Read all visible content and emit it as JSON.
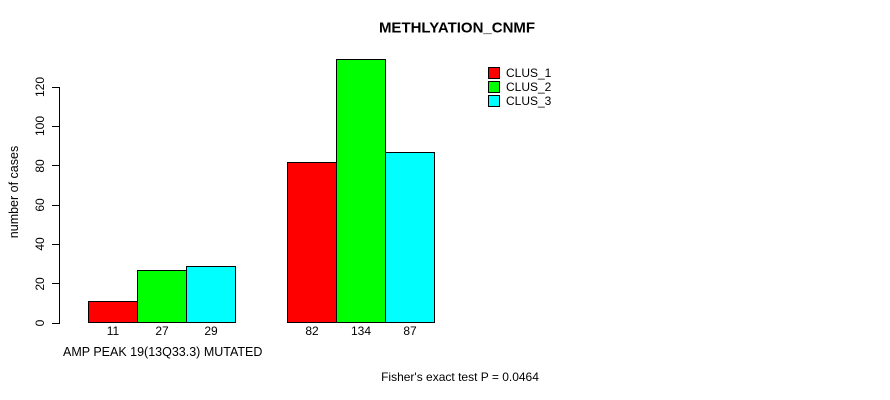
{
  "chart": {
    "title": "METHLYATION_CNMF",
    "ylabel": "number of cases",
    "xlabel": "AMP PEAK 19(13Q33.3) MUTATED",
    "footnote": "Fisher's exact test P = 0.0464"
  },
  "chart_data": {
    "type": "bar",
    "title": "METHLYATION_CNMF",
    "xlabel": "AMP PEAK 19(13Q33.3) MUTATED",
    "ylabel": "number of cases",
    "categories": [
      "",
      ""
    ],
    "series": [
      {
        "name": "CLUS_1",
        "color": "#FF0000",
        "values": [
          11,
          82
        ]
      },
      {
        "name": "CLUS_2",
        "color": "#00FF00",
        "values": [
          27,
          134
        ]
      },
      {
        "name": "CLUS_3",
        "color": "#00FFFF",
        "values": [
          29,
          87
        ]
      }
    ],
    "yticks": [
      0,
      20,
      40,
      60,
      80,
      100,
      120
    ],
    "ylim": [
      0,
      140
    ],
    "grid": false,
    "legend_position": "topright",
    "bar_value_labels_shown": true,
    "annotation": "Fisher's exact test P = 0.0464"
  }
}
